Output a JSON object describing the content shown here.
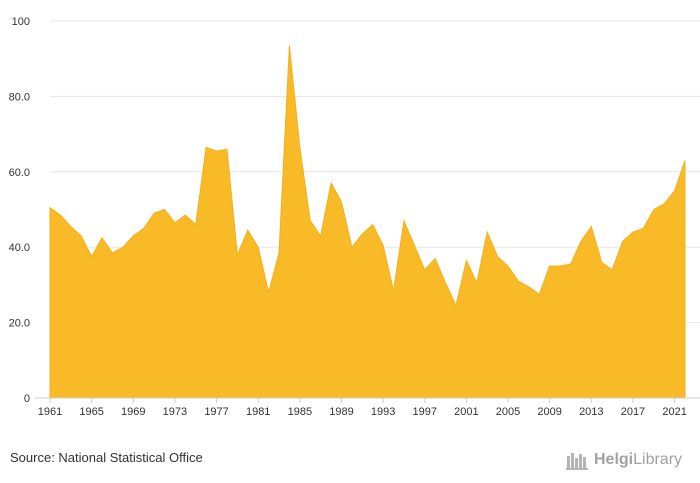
{
  "chart_data": {
    "type": "area",
    "x": [
      1961,
      1962,
      1963,
      1964,
      1965,
      1966,
      1967,
      1968,
      1969,
      1970,
      1971,
      1972,
      1973,
      1974,
      1975,
      1976,
      1977,
      1978,
      1979,
      1980,
      1981,
      1982,
      1983,
      1984,
      1985,
      1986,
      1987,
      1988,
      1989,
      1990,
      1991,
      1992,
      1993,
      1994,
      1995,
      1996,
      1997,
      1998,
      1999,
      2000,
      2001,
      2002,
      2003,
      2004,
      2005,
      2006,
      2007,
      2008,
      2009,
      2010,
      2011,
      2012,
      2013,
      2014,
      2015,
      2016,
      2017,
      2018,
      2019,
      2020,
      2021,
      2022
    ],
    "series": [
      {
        "color": "#f9ba27",
        "values": [
          50.5,
          48.5,
          45.5,
          43.0,
          37.5,
          42.5,
          38.5,
          40.0,
          43.0,
          45.0,
          49.0,
          50.0,
          46.5,
          48.5,
          46.0,
          66.5,
          65.5,
          66.0,
          38.0,
          44.5,
          40.0,
          28.0,
          38.5,
          93.5,
          66.5,
          47.0,
          43.0,
          57.0,
          52.0,
          40.0,
          43.5,
          46.0,
          40.5,
          28.5,
          47.0,
          40.5,
          34.0,
          37.0,
          30.5,
          24.5,
          36.5,
          30.5,
          44.0,
          37.5,
          35.0,
          31.0,
          29.5,
          27.5,
          35.0,
          35.0,
          35.5,
          41.5,
          45.5,
          36.0,
          34.0,
          41.5,
          44.0,
          45.0,
          50.0,
          51.5,
          55.0,
          63.0
        ]
      }
    ],
    "ylim": [
      0,
      100
    ],
    "y_ticks": [
      "0",
      "20.0",
      "40.0",
      "60.0",
      "80.0",
      "100"
    ],
    "x_ticks": [
      "1961",
      "1965",
      "1969",
      "1973",
      "1977",
      "1981",
      "1985",
      "1989",
      "1993",
      "1997",
      "2001",
      "2005",
      "2009",
      "2013",
      "2017",
      "2021"
    ],
    "grid": true,
    "legend": "none"
  },
  "footer": {
    "source": "Source: National Statistical Office",
    "logo_text_bold": "Helgi",
    "logo_text": "Library"
  }
}
